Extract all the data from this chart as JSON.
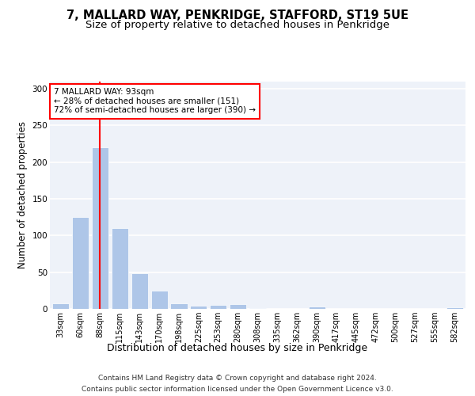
{
  "title": "7, MALLARD WAY, PENKRIDGE, STAFFORD, ST19 5UE",
  "subtitle": "Size of property relative to detached houses in Penkridge",
  "xlabel": "Distribution of detached houses by size in Penkridge",
  "ylabel": "Number of detached properties",
  "bar_labels": [
    "33sqm",
    "60sqm",
    "88sqm",
    "115sqm",
    "143sqm",
    "170sqm",
    "198sqm",
    "225sqm",
    "253sqm",
    "280sqm",
    "308sqm",
    "335sqm",
    "362sqm",
    "390sqm",
    "417sqm",
    "445sqm",
    "472sqm",
    "500sqm",
    "527sqm",
    "555sqm",
    "582sqm"
  ],
  "bar_values": [
    8,
    125,
    220,
    110,
    49,
    25,
    8,
    4,
    5,
    6,
    1,
    0,
    0,
    3,
    0,
    0,
    0,
    0,
    0,
    0,
    2
  ],
  "bar_color": "#aec6e8",
  "annotation_text": "7 MALLARD WAY: 93sqm\n← 28% of detached houses are smaller (151)\n72% of semi-detached houses are larger (390) →",
  "annotation_box_color": "white",
  "annotation_box_edge_color": "red",
  "vline_color": "red",
  "vline_x": 1.97,
  "ylim": [
    0,
    310
  ],
  "yticks": [
    0,
    50,
    100,
    150,
    200,
    250,
    300
  ],
  "footer_line1": "Contains HM Land Registry data © Crown copyright and database right 2024.",
  "footer_line2": "Contains public sector information licensed under the Open Government Licence v3.0.",
  "background_color": "#eef2f9",
  "grid_color": "white",
  "title_fontsize": 10.5,
  "subtitle_fontsize": 9.5,
  "xlabel_fontsize": 9,
  "axis_label_fontsize": 8.5,
  "tick_fontsize": 7,
  "footer_fontsize": 6.5,
  "annotation_fontsize": 7.5
}
